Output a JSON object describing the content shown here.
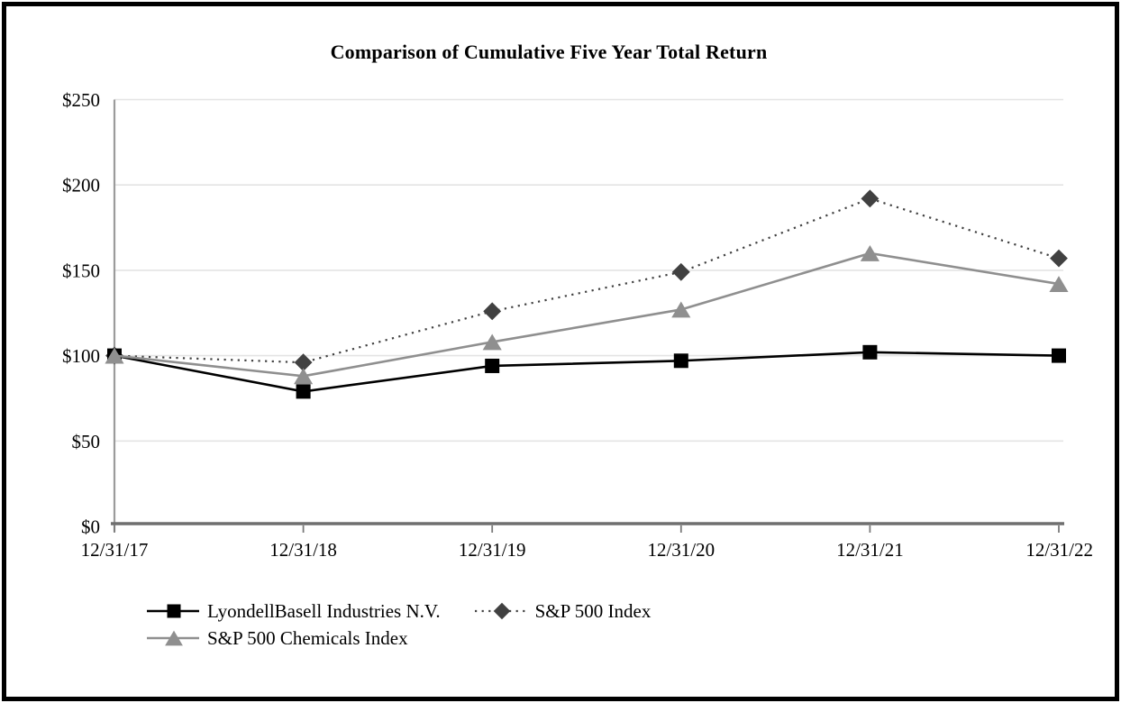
{
  "chart_data": {
    "type": "line",
    "title": "Comparison of Cumulative Five Year Total Return",
    "categories": [
      "12/31/17",
      "12/31/18",
      "12/31/19",
      "12/31/20",
      "12/31/21",
      "12/31/22"
    ],
    "series": [
      {
        "name": "LyondellBasell Industries N.V.",
        "values": [
          100,
          79,
          94,
          97,
          102,
          100
        ],
        "color": "#000000",
        "marker": "square",
        "line_style": "solid"
      },
      {
        "name": "S&P 500 Index",
        "values": [
          100,
          96,
          126,
          149,
          192,
          157
        ],
        "color": "#414141",
        "marker": "diamond",
        "line_style": "dotted"
      },
      {
        "name": "S&P 500 Chemicals Index",
        "values": [
          100,
          88,
          108,
          127,
          160,
          142
        ],
        "color": "#8f8f8f",
        "marker": "triangle",
        "line_style": "solid"
      }
    ],
    "y_tick_labels": [
      "$0",
      "$50",
      "$100",
      "$150",
      "$200",
      "$250"
    ],
    "y_tick_values": [
      0,
      50,
      100,
      150,
      200,
      250
    ],
    "ylim": [
      0,
      250
    ],
    "xlabel": "",
    "ylabel": "",
    "grid": "horizontal",
    "legend_position": "bottom-left"
  },
  "colors": {
    "background": "#ffffff",
    "page_border": "#000000",
    "gridline": "#e4e4e4",
    "x_axis": "#6f6f6f",
    "y_axis": "#9b9b9b",
    "tick": "#7a7a7a",
    "text": "#000000"
  }
}
